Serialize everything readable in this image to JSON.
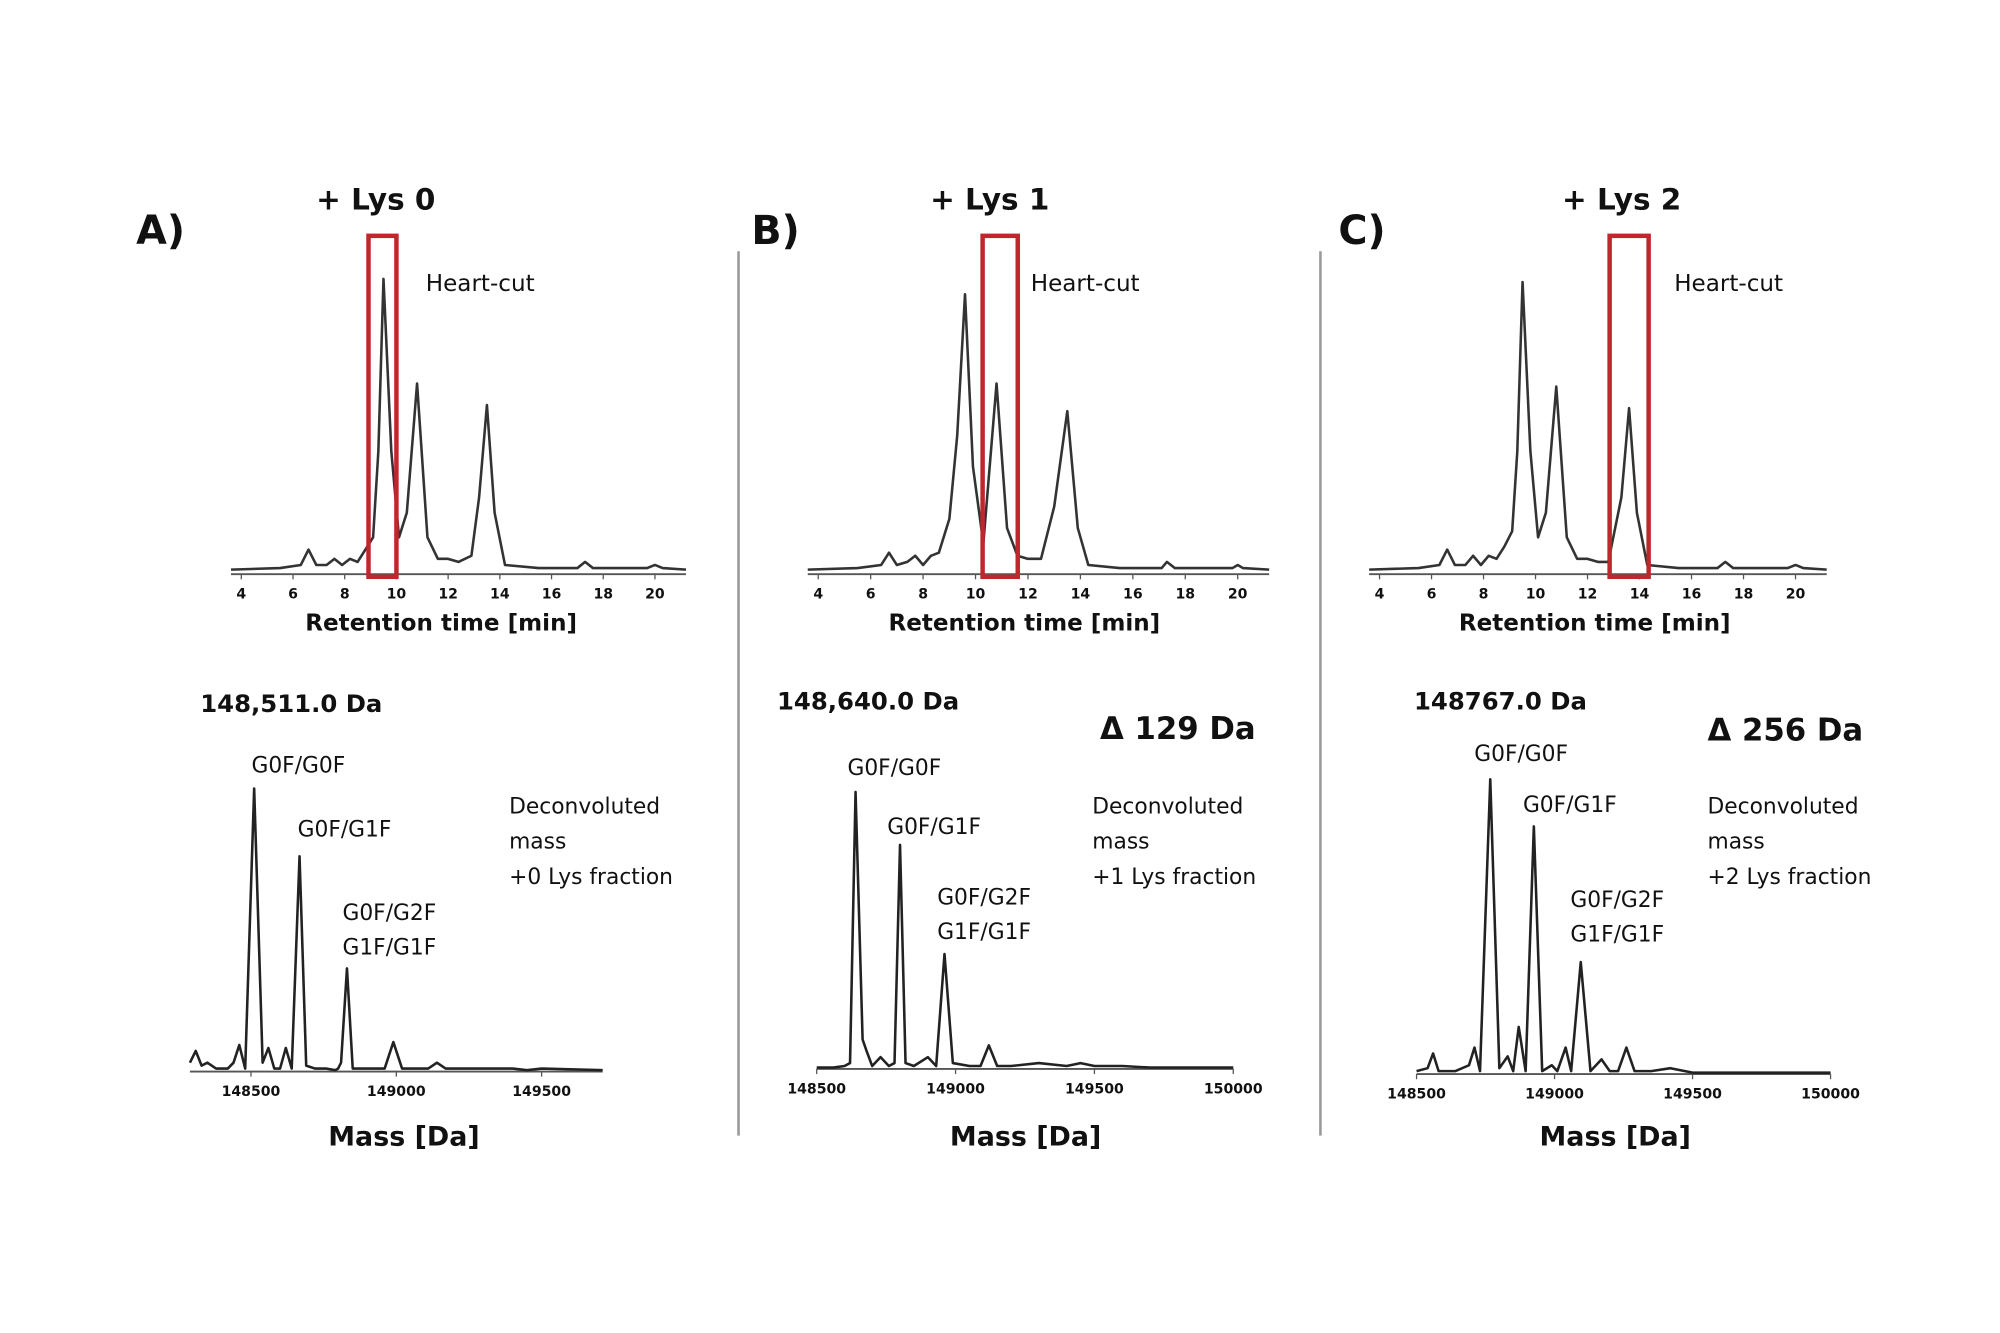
{
  "chart_data": [
    {
      "type": "line",
      "panel_label": "A)",
      "title": "+ Lys 0",
      "annotation": "Heart-cut",
      "xlabel": "Retention time [min]",
      "x": [
        3.6,
        5.5,
        6.3,
        6.6,
        6.9,
        7.3,
        7.6,
        7.9,
        8.2,
        8.5,
        8.8,
        9.1,
        9.3,
        9.5,
        9.8,
        10.1,
        10.4,
        10.8,
        11.2,
        11.6,
        12.0,
        12.4,
        12.9,
        13.2,
        13.5,
        13.8,
        14.2,
        15.5,
        17.0,
        17.3,
        17.6,
        19.7,
        20.0,
        20.3,
        21.2
      ],
      "values": [
        1.5,
        2,
        3,
        8,
        3,
        3,
        5,
        3,
        5,
        4,
        8,
        12,
        40,
        96,
        40,
        12,
        20,
        62,
        12,
        5,
        5,
        4,
        6,
        25,
        55,
        20,
        3,
        2,
        2,
        4,
        2,
        2,
        3,
        2,
        1.5
      ],
      "color": "#333333",
      "xlim": [
        3.6,
        21.2
      ],
      "ylim": [
        0,
        100
      ],
      "xticks": [
        4,
        6,
        8,
        10,
        12,
        14,
        16,
        18,
        20
      ],
      "highlight": [
        8.92,
        10.0
      ],
      "highlight_color": "#c0272d"
    },
    {
      "type": "line",
      "panel_label": "B)",
      "title": "+ Lys 1",
      "annotation": "Heart-cut",
      "xlabel": "Retention time [min]",
      "x": [
        3.6,
        5.5,
        6.4,
        6.7,
        7.0,
        7.4,
        7.7,
        8.0,
        8.3,
        8.6,
        9.0,
        9.3,
        9.6,
        9.9,
        10.3,
        10.8,
        11.2,
        11.6,
        12.0,
        12.5,
        13.0,
        13.5,
        13.9,
        14.3,
        15.5,
        17.1,
        17.3,
        17.6,
        19.8,
        20.0,
        20.2,
        21.2
      ],
      "values": [
        1.5,
        2,
        3,
        7,
        3,
        4,
        6,
        3,
        6,
        7,
        18,
        45,
        91,
        35,
        10,
        62,
        15,
        6,
        5,
        5,
        22,
        53,
        15,
        3,
        2,
        2,
        4,
        2,
        2,
        3,
        2,
        1.5
      ],
      "color": "#333333",
      "xlim": [
        3.6,
        21.2
      ],
      "ylim": [
        0,
        100
      ],
      "xticks": [
        4,
        6,
        8,
        10,
        12,
        14,
        16,
        18,
        20
      ],
      "highlight": [
        10.27,
        11.61
      ],
      "highlight_color": "#c0272d"
    },
    {
      "type": "line",
      "panel_label": "C)",
      "title": "+ Lys 2",
      "annotation": "Heart-cut",
      "xlabel": "Retention time [min]",
      "x": [
        3.6,
        5.5,
        6.3,
        6.6,
        6.9,
        7.3,
        7.6,
        7.9,
        8.2,
        8.5,
        8.8,
        9.1,
        9.3,
        9.5,
        9.8,
        10.1,
        10.4,
        10.8,
        11.2,
        11.6,
        12.0,
        12.4,
        12.8,
        13.3,
        13.6,
        13.9,
        14.3,
        15.5,
        17.0,
        17.3,
        17.6,
        19.7,
        20.0,
        20.3,
        21.2
      ],
      "values": [
        1.5,
        2,
        3,
        8,
        3,
        3,
        6,
        3,
        6,
        5,
        9,
        14,
        40,
        95,
        40,
        12,
        20,
        61,
        12,
        5,
        5,
        4,
        4,
        25,
        54,
        20,
        3,
        2,
        2,
        4,
        2,
        2,
        3,
        2,
        1.5
      ],
      "color": "#333333",
      "xlim": [
        3.6,
        21.2
      ],
      "ylim": [
        0,
        100
      ],
      "xticks": [
        4,
        6,
        8,
        10,
        12,
        14,
        16,
        18,
        20
      ],
      "highlight": [
        12.85,
        14.35
      ],
      "highlight_color": "#c0272d"
    },
    {
      "type": "line",
      "title": "148,511.0 Da",
      "xlabel": "Mass [Da]",
      "peak_labels": [
        "G0F/G0F",
        "G0F/G1F",
        "G0F/G2F",
        "G1F/G1F"
      ],
      "note": [
        "Deconvoluted",
        "mass",
        "+0 Lys fraction"
      ],
      "x": [
        148290,
        148310,
        148330,
        148350,
        148380,
        148420,
        148440,
        148460,
        148480,
        148511,
        148540,
        148560,
        148580,
        148600,
        148620,
        148640,
        148667,
        148690,
        148720,
        148760,
        148790,
        148800,
        148810,
        148830,
        148850,
        148890,
        148960,
        148990,
        149020,
        149060,
        149110,
        149140,
        149170,
        149250,
        149300,
        149400,
        149450,
        149500,
        149710
      ],
      "values": [
        3,
        7,
        2,
        3,
        1,
        1,
        3,
        9,
        1,
        96,
        3,
        8,
        1,
        1,
        8,
        1,
        73,
        2,
        1,
        1,
        0.5,
        1,
        3,
        35,
        1,
        1,
        1,
        10,
        1,
        1,
        1,
        3,
        1,
        1,
        1,
        1,
        0.5,
        1,
        0.5
      ],
      "color": "#222222",
      "xlim": [
        148290,
        149710
      ],
      "ylim": [
        0,
        100
      ],
      "xticks": [
        148500,
        149000,
        149500
      ]
    },
    {
      "type": "line",
      "title": "148,640.0 Da",
      "delta": "Δ 129 Da",
      "xlabel": "Mass [Da]",
      "peak_labels": [
        "G0F/G0F",
        "G0F/G1F",
        "G0F/G2F",
        "G1F/G1F"
      ],
      "note": [
        "Deconvoluted",
        "mass",
        "+1 Lys fraction"
      ],
      "x": [
        148500,
        148560,
        148600,
        148620,
        148640,
        148665,
        148680,
        148700,
        148730,
        148760,
        148780,
        148800,
        148820,
        148850,
        148900,
        148930,
        148960,
        148990,
        149050,
        149090,
        149120,
        149150,
        149200,
        149300,
        149400,
        149450,
        149500,
        149600,
        149700,
        150000
      ],
      "values": [
        0.5,
        0.5,
        1,
        2,
        94,
        10,
        6,
        1,
        4,
        1,
        2,
        76,
        2,
        1,
        4,
        1,
        39,
        2,
        1,
        1,
        8,
        1,
        1,
        2,
        1,
        2,
        1,
        1,
        0.5,
        0.5
      ],
      "color": "#222222",
      "xlim": [
        148500,
        150000
      ],
      "ylim": [
        0,
        100
      ],
      "xticks": [
        148500,
        149000,
        149500,
        150000
      ]
    },
    {
      "type": "line",
      "title": "148767.0 Da",
      "delta": "Δ 256 Da",
      "xlabel": "Mass [Da]",
      "peak_labels": [
        "G0F/G0F",
        "G0F/G1F",
        "G0F/G2F",
        "G1F/G1F"
      ],
      "note": [
        "Deconvoluted",
        "mass",
        "+2 Lys fraction"
      ],
      "x": [
        148500,
        148540,
        148560,
        148580,
        148640,
        148690,
        148710,
        148730,
        148767,
        148800,
        148830,
        148850,
        148870,
        148895,
        148925,
        148955,
        148990,
        149010,
        149040,
        149060,
        149095,
        149130,
        149170,
        149200,
        149230,
        149260,
        149290,
        149350,
        149420,
        149500,
        149600,
        150000
      ],
      "values": [
        1,
        2,
        7,
        1,
        1,
        3,
        9,
        1,
        100,
        2,
        6,
        1,
        16,
        1,
        84,
        1,
        3,
        1,
        9,
        1,
        38,
        1,
        5,
        1,
        1,
        9,
        1,
        1,
        2,
        0.5,
        0.5,
        0.5
      ],
      "color": "#222222",
      "xlim": [
        148500,
        150000
      ],
      "ylim": [
        0,
        100
      ],
      "xticks": [
        148500,
        149000,
        149500,
        150000
      ]
    }
  ]
}
